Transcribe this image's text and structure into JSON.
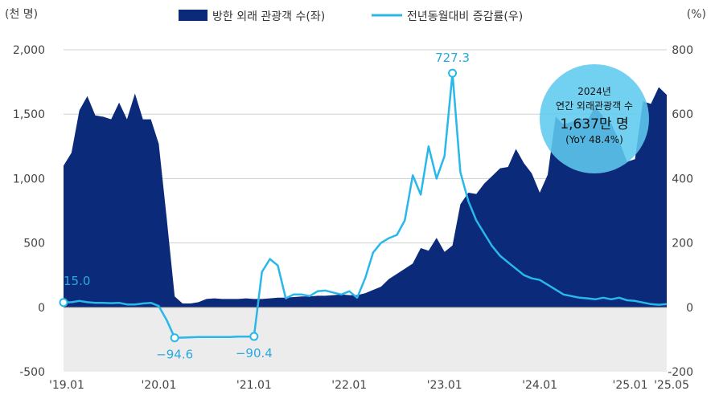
{
  "chart_data": {
    "type": "area+line",
    "units": {
      "left": "(천 명)",
      "right": "(%)"
    },
    "legend": [
      {
        "label": "방한 외래 관광객 수(좌)",
        "color": "#0b2a7a",
        "kind": "area"
      },
      {
        "label": "전년동월대비 증감률(우)",
        "color": "#2ab7ea",
        "kind": "line"
      }
    ],
    "left_axis": {
      "min": -500,
      "max": 2000,
      "ticks": [
        -500,
        0,
        500,
        "1,000",
        "1,500",
        "2,000"
      ],
      "tick_values": [
        -500,
        0,
        500,
        1000,
        1500,
        2000
      ]
    },
    "right_axis": {
      "min": -200,
      "max": 800,
      "ticks": [
        -200,
        0,
        200,
        400,
        600,
        800
      ]
    },
    "x_ticks": [
      "'19.01",
      "'20.01",
      "'21.01",
      "'22.01",
      "'23.01",
      "'24.01",
      "'25.01",
      "'25.05"
    ],
    "x_tick_months": [
      0,
      12,
      24,
      36,
      48,
      60,
      72,
      76
    ],
    "series": [
      {
        "name": "방한 외래 관광객 수(좌)",
        "axis": "left",
        "values": [
          1100,
          1200,
          1530,
          1640,
          1490,
          1480,
          1460,
          1590,
          1460,
          1660,
          1460,
          1460,
          1270,
          690,
          85,
          30,
          30,
          40,
          65,
          70,
          65,
          65,
          65,
          70,
          65,
          65,
          70,
          75,
          75,
          80,
          85,
          85,
          90,
          90,
          95,
          100,
          95,
          95,
          110,
          135,
          160,
          220,
          260,
          300,
          340,
          460,
          440,
          540,
          430,
          480,
          800,
          890,
          880,
          960,
          1020,
          1080,
          1090,
          1230,
          1120,
          1040,
          890,
          1030,
          1480,
          1420,
          1440,
          1470,
          1450,
          1560,
          1480,
          1430,
          1290,
          1130,
          1150,
          1600,
          1580,
          1710,
          1650
        ]
      },
      {
        "name": "전년동월대비 증감률(우)",
        "axis": "right",
        "values": [
          15.0,
          16,
          20,
          16,
          14,
          14,
          13,
          14,
          9,
          9,
          12,
          14,
          4,
          -40,
          -94.6,
          -94,
          -93,
          -92,
          -92,
          -92,
          -92,
          -92,
          -91,
          -91,
          -90.4,
          110,
          150,
          130,
          28,
          40,
          40,
          35,
          50,
          52,
          46,
          40,
          50,
          30,
          90,
          170,
          200,
          215,
          225,
          270,
          410,
          350,
          500,
          400,
          470,
          727.3,
          420,
          330,
          270,
          230,
          190,
          160,
          140,
          120,
          100,
          90,
          85,
          70,
          55,
          40,
          35,
          30,
          28,
          25,
          30,
          25,
          30,
          22,
          20,
          15,
          10,
          8,
          10
        ],
        "labels": [
          {
            "index": 0,
            "text": "15.0"
          },
          {
            "index": 14,
            "text": "−94.6"
          },
          {
            "index": 24,
            "text": "−90.4"
          },
          {
            "index": 49,
            "text": "727.3"
          }
        ]
      }
    ],
    "annotation": {
      "lines": [
        "2024년",
        "연간 외래관광객 수",
        "1,637만 명",
        "(YoY 48.4%)"
      ],
      "color": "#5ec9ee"
    },
    "colors": {
      "area": "#0b2a7a",
      "line": "#2ab7ea",
      "negative_band": "#ececec",
      "grid": "#d0d0d0"
    }
  }
}
